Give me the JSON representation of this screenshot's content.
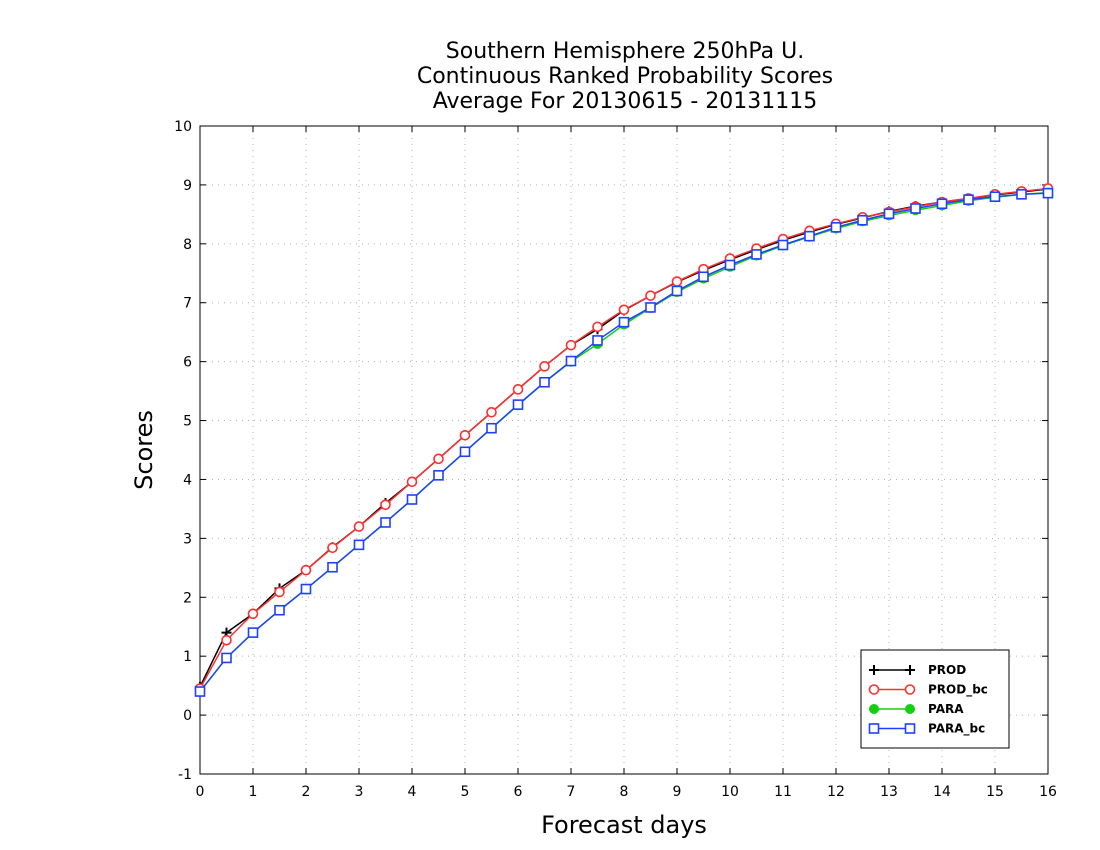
{
  "chart_data": {
    "type": "line",
    "title": [
      "Southern Hemisphere 250hPa U.",
      "Continuous Ranked Probability Scores",
      "Average For 20130615 - 20131115"
    ],
    "xlabel": "Forecast days",
    "ylabel": "Scores",
    "xlim": [
      0,
      16
    ],
    "ylim": [
      -1,
      10
    ],
    "xticks": [
      0,
      1,
      2,
      3,
      4,
      5,
      6,
      7,
      8,
      9,
      10,
      11,
      12,
      13,
      14,
      15,
      16
    ],
    "yticks": [
      -1,
      0,
      1,
      2,
      3,
      4,
      5,
      6,
      7,
      8,
      9,
      10
    ],
    "grid": true,
    "legend_position": "bottom-right",
    "x": [
      0,
      0.5,
      1,
      1.5,
      2,
      2.5,
      3,
      3.5,
      4,
      4.5,
      5,
      5.5,
      6,
      6.5,
      7,
      7.5,
      8,
      8.5,
      9,
      9.5,
      10,
      10.5,
      11,
      11.5,
      12,
      12.5,
      13,
      13.5,
      14,
      14.5,
      15,
      15.5,
      16
    ],
    "series": [
      {
        "name": "PROD",
        "color": "#000000",
        "marker": "plus",
        "values": [
          0.48,
          1.4,
          1.72,
          2.15,
          2.46,
          2.85,
          3.2,
          3.6,
          3.96,
          4.35,
          4.75,
          5.14,
          5.53,
          5.92,
          6.28,
          6.55,
          6.87,
          7.12,
          7.35,
          7.55,
          7.73,
          7.9,
          8.06,
          8.2,
          8.33,
          8.44,
          8.55,
          8.64,
          8.71,
          8.77,
          8.83,
          8.88,
          8.93
        ]
      },
      {
        "name": "PROD_bc",
        "color": "#ff3030",
        "marker": "circle",
        "values": [
          0.45,
          1.27,
          1.72,
          2.09,
          2.46,
          2.84,
          3.2,
          3.57,
          3.96,
          4.35,
          4.75,
          5.14,
          5.53,
          5.92,
          6.28,
          6.59,
          6.88,
          7.12,
          7.36,
          7.57,
          7.75,
          7.92,
          8.08,
          8.22,
          8.34,
          8.45,
          8.54,
          8.63,
          8.71,
          8.77,
          8.84,
          8.89,
          8.94
        ]
      },
      {
        "name": "PARA",
        "color": "#10d010",
        "marker": "dot",
        "values": [
          0.4,
          0.97,
          1.4,
          1.78,
          2.14,
          2.51,
          2.89,
          3.27,
          3.66,
          4.07,
          4.47,
          4.87,
          5.26,
          5.65,
          6.0,
          6.3,
          6.63,
          6.91,
          7.18,
          7.41,
          7.61,
          7.8,
          7.97,
          8.12,
          8.26,
          8.38,
          8.48,
          8.57,
          8.65,
          8.73,
          8.79,
          8.84,
          8.87
        ]
      },
      {
        "name": "PARA_bc",
        "color": "#2040ff",
        "marker": "square",
        "values": [
          0.4,
          0.97,
          1.4,
          1.78,
          2.14,
          2.51,
          2.89,
          3.27,
          3.66,
          4.07,
          4.47,
          4.87,
          5.27,
          5.65,
          6.01,
          6.36,
          6.67,
          6.92,
          7.2,
          7.44,
          7.64,
          7.82,
          7.98,
          8.13,
          8.28,
          8.4,
          8.51,
          8.6,
          8.68,
          8.75,
          8.8,
          8.84,
          8.86
        ]
      }
    ]
  }
}
